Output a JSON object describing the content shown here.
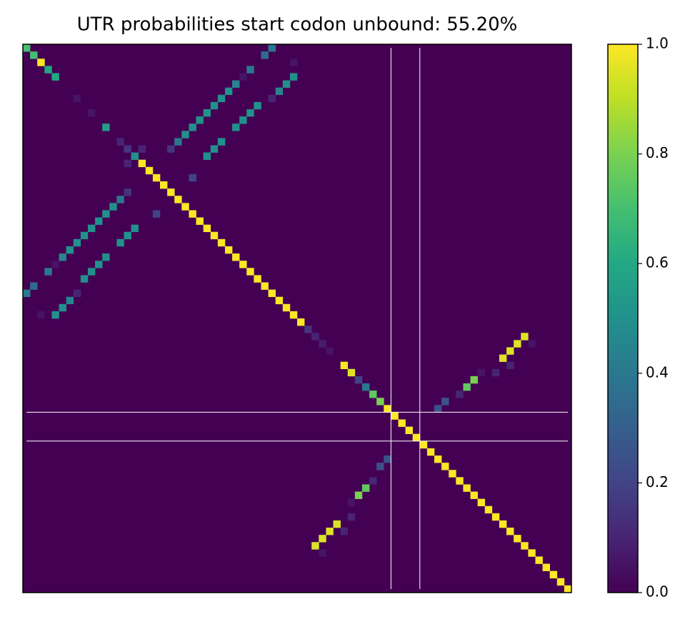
{
  "chart_data": {
    "type": "heatmap",
    "title": "UTR probabilities start codon unbound: 55.20%",
    "colormap": "viridis",
    "size": 76,
    "symmetric": true,
    "markers": [
      51,
      55
    ],
    "clim": [
      0,
      1
    ],
    "cticks": [
      {
        "value": 0,
        "label": "0.0"
      },
      {
        "value": 0.2,
        "label": "0.2"
      },
      {
        "value": 0.4,
        "label": "0.4"
      },
      {
        "value": 0.6,
        "label": "0.6"
      },
      {
        "value": 0.8,
        "label": "0.8"
      },
      {
        "value": 1,
        "label": "1.0"
      }
    ],
    "cells": [
      {
        "row": 0,
        "col": 0,
        "value": 0.7
      },
      {
        "row": 1,
        "col": 1,
        "value": 0.7
      },
      {
        "row": 2,
        "col": 2,
        "value": 1.0
      },
      {
        "row": 3,
        "col": 3,
        "value": 0.6
      },
      {
        "row": 4,
        "col": 4,
        "value": 0.6
      },
      {
        "row": 7,
        "col": 7,
        "value": 0.05
      },
      {
        "row": 9,
        "col": 9,
        "value": 0.05
      },
      {
        "row": 11,
        "col": 11,
        "value": 0.55
      },
      {
        "row": 13,
        "col": 13,
        "value": 0.1
      },
      {
        "row": 14,
        "col": 14,
        "value": 0.15
      },
      {
        "row": 15,
        "col": 15,
        "value": 0.5
      },
      {
        "row": 16,
        "col": 16,
        "value": 1.0
      },
      {
        "row": 17,
        "col": 17,
        "value": 1.0
      },
      {
        "row": 18,
        "col": 18,
        "value": 1.0
      },
      {
        "row": 19,
        "col": 19,
        "value": 1.0
      },
      {
        "row": 20,
        "col": 20,
        "value": 1.0
      },
      {
        "row": 21,
        "col": 21,
        "value": 1.0
      },
      {
        "row": 22,
        "col": 22,
        "value": 1.0
      },
      {
        "row": 23,
        "col": 23,
        "value": 1.0
      },
      {
        "row": 24,
        "col": 24,
        "value": 1.0
      },
      {
        "row": 25,
        "col": 25,
        "value": 1.0
      },
      {
        "row": 26,
        "col": 26,
        "value": 1.0
      },
      {
        "row": 27,
        "col": 27,
        "value": 1.0
      },
      {
        "row": 28,
        "col": 28,
        "value": 1.0
      },
      {
        "row": 29,
        "col": 29,
        "value": 1.0
      },
      {
        "row": 30,
        "col": 30,
        "value": 1.0
      },
      {
        "row": 31,
        "col": 31,
        "value": 1.0
      },
      {
        "row": 32,
        "col": 32,
        "value": 1.0
      },
      {
        "row": 33,
        "col": 33,
        "value": 1.0
      },
      {
        "row": 34,
        "col": 34,
        "value": 1.0
      },
      {
        "row": 35,
        "col": 35,
        "value": 1.0
      },
      {
        "row": 36,
        "col": 36,
        "value": 1.0
      },
      {
        "row": 37,
        "col": 37,
        "value": 1.0
      },
      {
        "row": 38,
        "col": 38,
        "value": 1.0
      },
      {
        "row": 39,
        "col": 39,
        "value": 0.15
      },
      {
        "row": 40,
        "col": 40,
        "value": 0.1
      },
      {
        "row": 41,
        "col": 41,
        "value": 0.08
      },
      {
        "row": 42,
        "col": 42,
        "value": 0.05
      },
      {
        "row": 44,
        "col": 44,
        "value": 1.0
      },
      {
        "row": 45,
        "col": 45,
        "value": 0.95
      },
      {
        "row": 46,
        "col": 46,
        "value": 0.2
      },
      {
        "row": 47,
        "col": 47,
        "value": 0.4
      },
      {
        "row": 48,
        "col": 48,
        "value": 0.75
      },
      {
        "row": 49,
        "col": 49,
        "value": 0.8
      },
      {
        "row": 50,
        "col": 50,
        "value": 1.0
      },
      {
        "row": 51,
        "col": 51,
        "value": 1.0
      },
      {
        "row": 52,
        "col": 52,
        "value": 1.0
      },
      {
        "row": 53,
        "col": 53,
        "value": 1.0
      },
      {
        "row": 54,
        "col": 54,
        "value": 1.0
      },
      {
        "row": 55,
        "col": 55,
        "value": 1.0
      },
      {
        "row": 56,
        "col": 56,
        "value": 1.0
      },
      {
        "row": 57,
        "col": 57,
        "value": 1.0
      },
      {
        "row": 58,
        "col": 58,
        "value": 1.0
      },
      {
        "row": 59,
        "col": 59,
        "value": 1.0
      },
      {
        "row": 60,
        "col": 60,
        "value": 1.0
      },
      {
        "row": 61,
        "col": 61,
        "value": 1.0
      },
      {
        "row": 62,
        "col": 62,
        "value": 1.0
      },
      {
        "row": 63,
        "col": 63,
        "value": 1.0
      },
      {
        "row": 64,
        "col": 64,
        "value": 1.0
      },
      {
        "row": 65,
        "col": 65,
        "value": 1.0
      },
      {
        "row": 66,
        "col": 66,
        "value": 1.0
      },
      {
        "row": 67,
        "col": 67,
        "value": 1.0
      },
      {
        "row": 68,
        "col": 68,
        "value": 1.0
      },
      {
        "row": 69,
        "col": 69,
        "value": 1.0
      },
      {
        "row": 70,
        "col": 70,
        "value": 1.0
      },
      {
        "row": 71,
        "col": 71,
        "value": 1.0
      },
      {
        "row": 72,
        "col": 72,
        "value": 1.0
      },
      {
        "row": 73,
        "col": 73,
        "value": 1.0
      },
      {
        "row": 74,
        "col": 74,
        "value": 1.0
      },
      {
        "row": 75,
        "col": 75,
        "value": 1.0
      },
      {
        "row": 0,
        "col": 34,
        "value": 0.4
      },
      {
        "row": 1,
        "col": 33,
        "value": 0.35
      },
      {
        "row": 3,
        "col": 31,
        "value": 0.4
      },
      {
        "row": 4,
        "col": 30,
        "value": 0.05
      },
      {
        "row": 5,
        "col": 29,
        "value": 0.45
      },
      {
        "row": 6,
        "col": 28,
        "value": 0.5
      },
      {
        "row": 7,
        "col": 27,
        "value": 0.5
      },
      {
        "row": 8,
        "col": 26,
        "value": 0.5
      },
      {
        "row": 9,
        "col": 25,
        "value": 0.5
      },
      {
        "row": 10,
        "col": 24,
        "value": 0.5
      },
      {
        "row": 11,
        "col": 23,
        "value": 0.5
      },
      {
        "row": 12,
        "col": 22,
        "value": 0.5
      },
      {
        "row": 13,
        "col": 21,
        "value": 0.4
      },
      {
        "row": 14,
        "col": 20,
        "value": 0.15
      },
      {
        "row": 4,
        "col": 37,
        "value": 0.5
      },
      {
        "row": 5,
        "col": 36,
        "value": 0.5
      },
      {
        "row": 6,
        "col": 35,
        "value": 0.45
      },
      {
        "row": 7,
        "col": 34,
        "value": 0.1
      },
      {
        "row": 8,
        "col": 32,
        "value": 0.5
      },
      {
        "row": 9,
        "col": 31,
        "value": 0.5
      },
      {
        "row": 10,
        "col": 30,
        "value": 0.5
      },
      {
        "row": 11,
        "col": 29,
        "value": 0.5
      },
      {
        "row": 13,
        "col": 27,
        "value": 0.5
      },
      {
        "row": 14,
        "col": 26,
        "value": 0.5
      },
      {
        "row": 15,
        "col": 25,
        "value": 0.5
      },
      {
        "row": 18,
        "col": 23,
        "value": 0.2
      },
      {
        "row": 2,
        "col": 37,
        "value": 0.05
      },
      {
        "row": 16,
        "col": 14,
        "value": 0.1
      },
      {
        "row": 40,
        "col": 69,
        "value": 0.95
      },
      {
        "row": 41,
        "col": 68,
        "value": 0.95
      },
      {
        "row": 42,
        "col": 67,
        "value": 0.95
      },
      {
        "row": 43,
        "col": 66,
        "value": 0.95
      },
      {
        "row": 44,
        "col": 67,
        "value": 0.1
      },
      {
        "row": 45,
        "col": 65,
        "value": 0.1
      },
      {
        "row": 46,
        "col": 62,
        "value": 0.8
      },
      {
        "row": 47,
        "col": 61,
        "value": 0.75
      },
      {
        "row": 48,
        "col": 60,
        "value": 0.1
      },
      {
        "row": 49,
        "col": 58,
        "value": 0.25
      },
      {
        "row": 50,
        "col": 57,
        "value": 0.25
      },
      {
        "row": 41,
        "col": 70,
        "value": 0.05
      },
      {
        "row": 45,
        "col": 63,
        "value": 0.05
      }
    ]
  }
}
